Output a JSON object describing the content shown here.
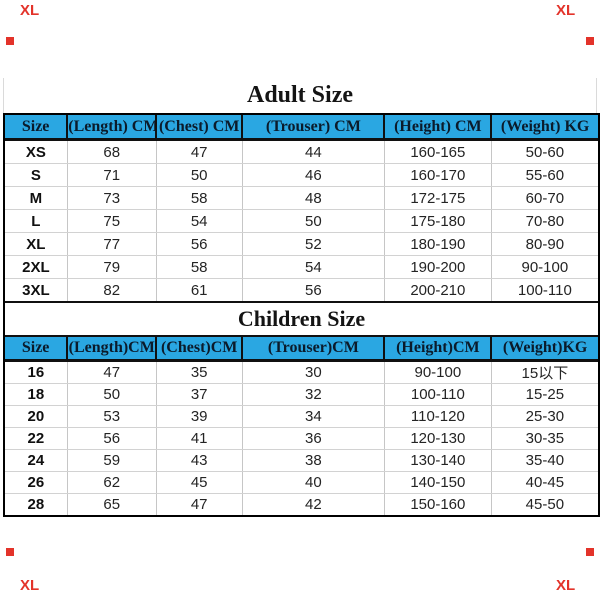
{
  "chart_data": [
    {
      "type": "table",
      "title": "Adult Size",
      "columns": [
        "Size",
        "(Length) CM",
        "(Chest) CM",
        "(Trouser) CM",
        "(Height) CM",
        "(Weight) KG"
      ],
      "rows": [
        [
          "XS",
          "68",
          "47",
          "44",
          "160-165",
          "50-60"
        ],
        [
          "S",
          "71",
          "50",
          "46",
          "160-170",
          "55-60"
        ],
        [
          "M",
          "73",
          "58",
          "48",
          "172-175",
          "60-70"
        ],
        [
          "L",
          "75",
          "54",
          "50",
          "175-180",
          "70-80"
        ],
        [
          "XL",
          "77",
          "56",
          "52",
          "180-190",
          "80-90"
        ],
        [
          "2XL",
          "79",
          "58",
          "54",
          "190-200",
          "90-100"
        ],
        [
          "3XL",
          "82",
          "61",
          "56",
          "200-210",
          "100-110"
        ]
      ]
    },
    {
      "type": "table",
      "title": "Children Size",
      "columns": [
        "Size",
        "(Length)CM",
        "(Chest)CM",
        "(Trouser)CM",
        "(Height)CM",
        "(Weight)KG"
      ],
      "rows": [
        [
          "16",
          "47",
          "35",
          "30",
          "90-100",
          "15以下"
        ],
        [
          "18",
          "50",
          "37",
          "32",
          "100-110",
          "15-25"
        ],
        [
          "20",
          "53",
          "39",
          "34",
          "110-120",
          "25-30"
        ],
        [
          "22",
          "56",
          "41",
          "36",
          "120-130",
          "30-35"
        ],
        [
          "24",
          "59",
          "43",
          "38",
          "130-140",
          "35-40"
        ],
        [
          "26",
          "62",
          "45",
          "40",
          "140-150",
          "40-45"
        ],
        [
          "28",
          "65",
          "47",
          "42",
          "150-160",
          "45-50"
        ]
      ]
    }
  ],
  "styles": {
    "header_bg": "#2AA7E2",
    "header_text": "#0B1B2B",
    "grid_dark": "#101010",
    "grid_light": "#C6C6C6",
    "watermark_red": "#E3332A"
  },
  "watermark": {
    "text": "XL"
  }
}
